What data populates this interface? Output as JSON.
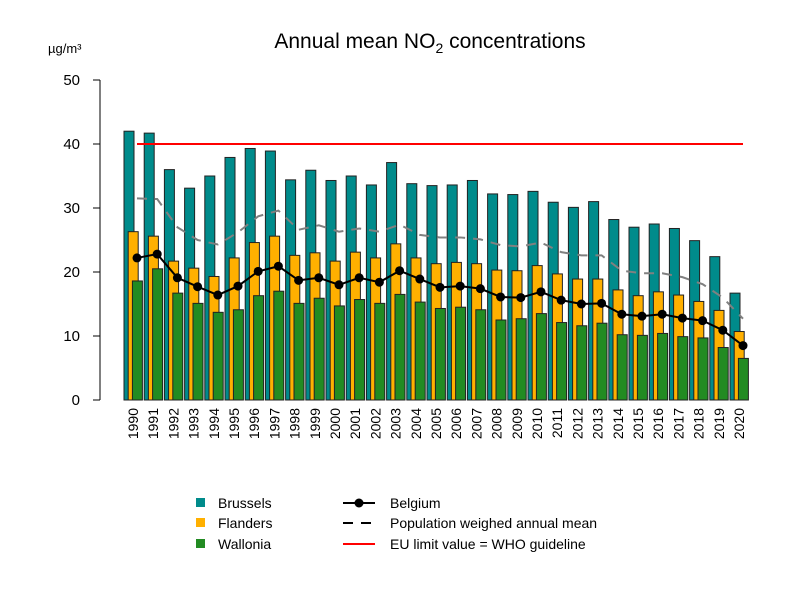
{
  "chart_data": {
    "type": "bar",
    "title": {
      "prefix": "Annual mean NO",
      "subscript": "2",
      "suffix": " concentrations"
    },
    "ylabel": "µg/m³",
    "ylim": [
      0,
      50
    ],
    "yticks": [
      "0",
      "10",
      "20",
      "30",
      "40",
      "50"
    ],
    "grid": false,
    "legend_placement": "bottom",
    "categories": [
      "1990",
      "1991",
      "1992",
      "1993",
      "1994",
      "1995",
      "1996",
      "1997",
      "1998",
      "1999",
      "2000",
      "2001",
      "2002",
      "2003",
      "2004",
      "2005",
      "2006",
      "2007",
      "2008",
      "2009",
      "2010",
      "2011",
      "2012",
      "2013",
      "2014",
      "2015",
      "2016",
      "2017",
      "2018",
      "2019",
      "2020"
    ],
    "series": [
      {
        "name": "Brussels",
        "kind": "bar",
        "color": "#008B8B",
        "values": [
          42.0,
          41.7,
          36.0,
          33.1,
          35.0,
          37.9,
          39.3,
          38.9,
          34.4,
          35.9,
          34.3,
          35.0,
          33.6,
          37.1,
          33.8,
          33.5,
          33.6,
          34.3,
          32.2,
          32.1,
          32.6,
          30.9,
          30.1,
          31.0,
          28.2,
          27.0,
          27.5,
          26.8,
          24.9,
          22.4,
          16.7
        ]
      },
      {
        "name": "Flanders",
        "kind": "bar",
        "color": "#FFB000",
        "values": [
          26.3,
          25.6,
          21.7,
          20.6,
          19.3,
          22.2,
          24.6,
          25.6,
          22.6,
          23.0,
          21.7,
          23.1,
          22.2,
          24.4,
          22.2,
          21.3,
          21.5,
          21.3,
          20.3,
          20.2,
          21.0,
          19.7,
          18.9,
          18.9,
          17.2,
          16.3,
          16.9,
          16.4,
          15.4,
          14.0,
          10.7
        ]
      },
      {
        "name": "Wallonia",
        "kind": "bar",
        "color": "#228B22",
        "values": [
          18.6,
          20.5,
          16.7,
          15.1,
          13.7,
          14.1,
          16.3,
          17.0,
          15.1,
          15.9,
          14.7,
          15.7,
          15.1,
          16.5,
          15.3,
          14.3,
          14.5,
          14.1,
          12.5,
          12.7,
          13.5,
          12.1,
          11.6,
          12.0,
          10.2,
          10.1,
          10.4,
          9.9,
          9.7,
          8.2,
          6.5
        ]
      },
      {
        "name": "Belgium",
        "kind": "line-markers",
        "color": "#000000",
        "values": [
          22.2,
          22.8,
          19.1,
          17.7,
          16.4,
          17.8,
          20.1,
          20.9,
          18.7,
          19.1,
          18.0,
          19.1,
          18.4,
          20.2,
          18.9,
          17.6,
          17.8,
          17.4,
          16.1,
          16.0,
          16.9,
          15.6,
          15.0,
          15.1,
          13.4,
          13.1,
          13.4,
          12.8,
          12.4,
          10.9,
          8.5
        ]
      },
      {
        "name": "Population weighed annual mean",
        "kind": "dashed-line",
        "color": "#808080",
        "values": [
          31.5,
          31.4,
          27.0,
          25.0,
          24.3,
          26.2,
          28.7,
          29.6,
          26.6,
          27.3,
          26.3,
          26.8,
          26.3,
          27.4,
          25.8,
          25.4,
          25.4,
          25.1,
          24.2,
          24.0,
          24.6,
          23.1,
          22.6,
          22.6,
          20.2,
          19.8,
          19.8,
          19.2,
          18.1,
          16.0,
          12.7
        ]
      },
      {
        "name": "EU limit value = WHO guideline",
        "kind": "hline",
        "color": "#FF0000",
        "value": 40
      }
    ],
    "legend": {
      "left": [
        "Brussels",
        "Flanders",
        "Wallonia"
      ],
      "right": [
        "Belgium",
        "Population weighed annual mean",
        "EU limit value = WHO guideline"
      ]
    }
  }
}
